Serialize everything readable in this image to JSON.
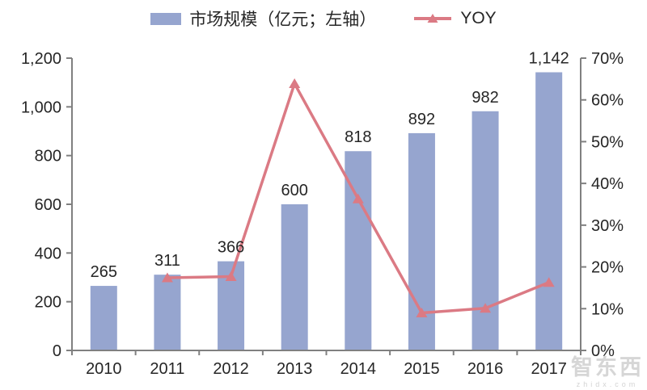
{
  "legend": {
    "bar_label": "市场规模（亿元；左轴）",
    "line_label": "YOY"
  },
  "watermark": {
    "logo": "智东西",
    "domain": "zhidx.com"
  },
  "colors": {
    "bar": "#96A5CF",
    "line": "#DB7A84",
    "axis": "#808080",
    "text": "#262626",
    "watermark": "#CFCFCF",
    "background": "#FFFFFF"
  },
  "chart_data": {
    "type": "bar",
    "title": "",
    "categories": [
      "2010",
      "2011",
      "2012",
      "2013",
      "2014",
      "2015",
      "2016",
      "2017"
    ],
    "series": [
      {
        "name": "市场规模（亿元；左轴）",
        "type": "bar",
        "axis": "left",
        "values": [
          265,
          311,
          366,
          600,
          818,
          892,
          982,
          1142
        ],
        "value_labels": [
          "265",
          "311",
          "366",
          "600",
          "818",
          "892",
          "982",
          "1,142"
        ]
      },
      {
        "name": "YOY",
        "type": "line",
        "axis": "right",
        "values_percent": [
          null,
          17.4,
          17.7,
          63.9,
          36.3,
          9.0,
          10.1,
          16.3
        ]
      }
    ],
    "left_axis": {
      "min": 0,
      "max": 1200,
      "step": 200,
      "tick_labels": [
        "0",
        "200",
        "400",
        "600",
        "800",
        "1,000",
        "1,200"
      ]
    },
    "right_axis": {
      "min": 0,
      "max": 70,
      "step": 10,
      "tick_labels": [
        "0%",
        "10%",
        "20%",
        "30%",
        "40%",
        "50%",
        "60%",
        "70%"
      ]
    },
    "grid": false,
    "legend_position": "top"
  }
}
